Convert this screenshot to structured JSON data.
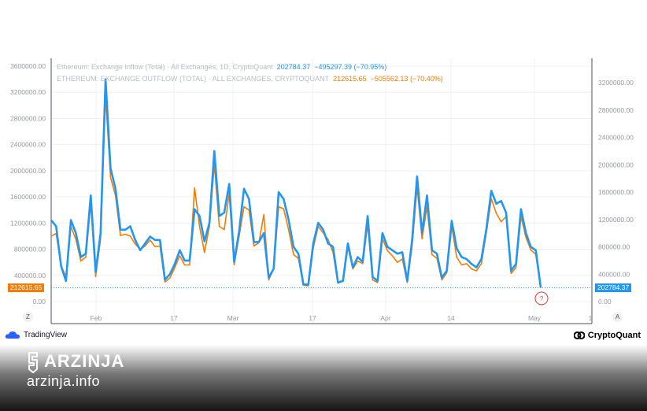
{
  "legend": {
    "line1_label": "Ethereum: Exchange Inflow (Total) · All Exchanges, 1D, CryptoQuant",
    "line1_value": "202784.37",
    "line1_change": "−495297.39 (−70.95%)",
    "line2_label": "ETHEREUM: EXCHANGE OUTFLOW (TOTAL) · ALL EXCHANGES, CRYPTOQUANT",
    "line2_value": "212615.65",
    "line2_change": "−505562.13 (−70.40%)"
  },
  "last_values": {
    "left": "212615.65",
    "right": "202784.37"
  },
  "axis_buttons": {
    "left": "Z",
    "right": "A"
  },
  "marker": "?",
  "branding": {
    "tradingview": "TradingView",
    "cryptoquant": "CryptoQuant",
    "site_name": "ARZINJA",
    "site_url": "arzinja.info"
  },
  "colors": {
    "inflow": "#2196f3",
    "outflow": "#f57c00",
    "grid": "#eef0f3",
    "axis_text": "#9598a1"
  },
  "chart_data": {
    "type": "line",
    "x_tick_labels": [
      "Feb",
      "17",
      "Mar",
      "17",
      "Apr",
      "14",
      "May",
      "1"
    ],
    "left_axis": {
      "ylim": [
        -50000,
        3650000
      ],
      "ticks": [
        0,
        400000,
        800000,
        1200000,
        1600000,
        2000000,
        2400000,
        2800000,
        3200000,
        3600000
      ]
    },
    "right_axis": {
      "ylim": [
        -50000,
        3650000
      ],
      "ticks": [
        0,
        400000,
        800000,
        1200000,
        1600000,
        2000000,
        2400000,
        2800000,
        3200000
      ]
    },
    "series": [
      {
        "name": "Ethereum: Exchange Inflow (Total)",
        "axis": "right",
        "values": [
          1190000,
          1100000,
          520000,
          300000,
          1190000,
          1000000,
          650000,
          700000,
          1550000,
          430000,
          1000000,
          3250000,
          1950000,
          1650000,
          1050000,
          1050000,
          1100000,
          900000,
          750000,
          850000,
          950000,
          900000,
          900000,
          320000,
          400000,
          550000,
          750000,
          600000,
          600000,
          1350000,
          1250000,
          880000,
          1150000,
          2200000,
          1250000,
          1300000,
          1720000,
          580000,
          1020000,
          1650000,
          1500000,
          870000,
          870000,
          1000000,
          350000,
          480000,
          1600000,
          1500000,
          1200000,
          800000,
          700000,
          250000,
          250000,
          850000,
          1150000,
          1050000,
          850000,
          800000,
          280000,
          300000,
          850000,
          500000,
          650000,
          580000,
          1250000,
          360000,
          300000,
          1000000,
          800000,
          750000,
          700000,
          720000,
          300000,
          900000,
          1830000,
          1000000,
          1550000,
          750000,
          700000,
          350000,
          450000,
          1180000,
          780000,
          650000,
          620000,
          550000,
          500000,
          620000,
          1060000,
          1620000,
          1430000,
          1470000,
          1300000,
          450000,
          550000,
          1350000,
          1000000,
          800000,
          750000,
          202784
        ]
      },
      {
        "name": "Ethereum: Exchange Outflow (Total)",
        "axis": "left",
        "values": [
          1000000,
          1040000,
          550000,
          380000,
          1150000,
          950000,
          620000,
          680000,
          1500000,
          380000,
          960000,
          3150000,
          1900000,
          1620000,
          1010000,
          1030000,
          1000000,
          880000,
          800000,
          850000,
          940000,
          840000,
          850000,
          300000,
          360000,
          520000,
          700000,
          560000,
          560000,
          1740000,
          1150000,
          750000,
          1150000,
          2100000,
          1150000,
          1100000,
          1650000,
          560000,
          990000,
          1450000,
          1400000,
          850000,
          900000,
          1330000,
          330000,
          500000,
          1450000,
          1420000,
          1100000,
          720000,
          660000,
          250000,
          240000,
          820000,
          1150000,
          1050000,
          950000,
          750000,
          280000,
          310000,
          830000,
          500000,
          620000,
          580000,
          1180000,
          330000,
          290000,
          960000,
          780000,
          700000,
          600000,
          650000,
          290000,
          850000,
          1750000,
          960000,
          1450000,
          720000,
          660000,
          330000,
          440000,
          1150000,
          680000,
          560000,
          580000,
          500000,
          470000,
          580000,
          1050000,
          1570000,
          1350000,
          1220000,
          1300000,
          430000,
          520000,
          1300000,
          980000,
          790000,
          720000,
          212615
        ]
      }
    ]
  }
}
